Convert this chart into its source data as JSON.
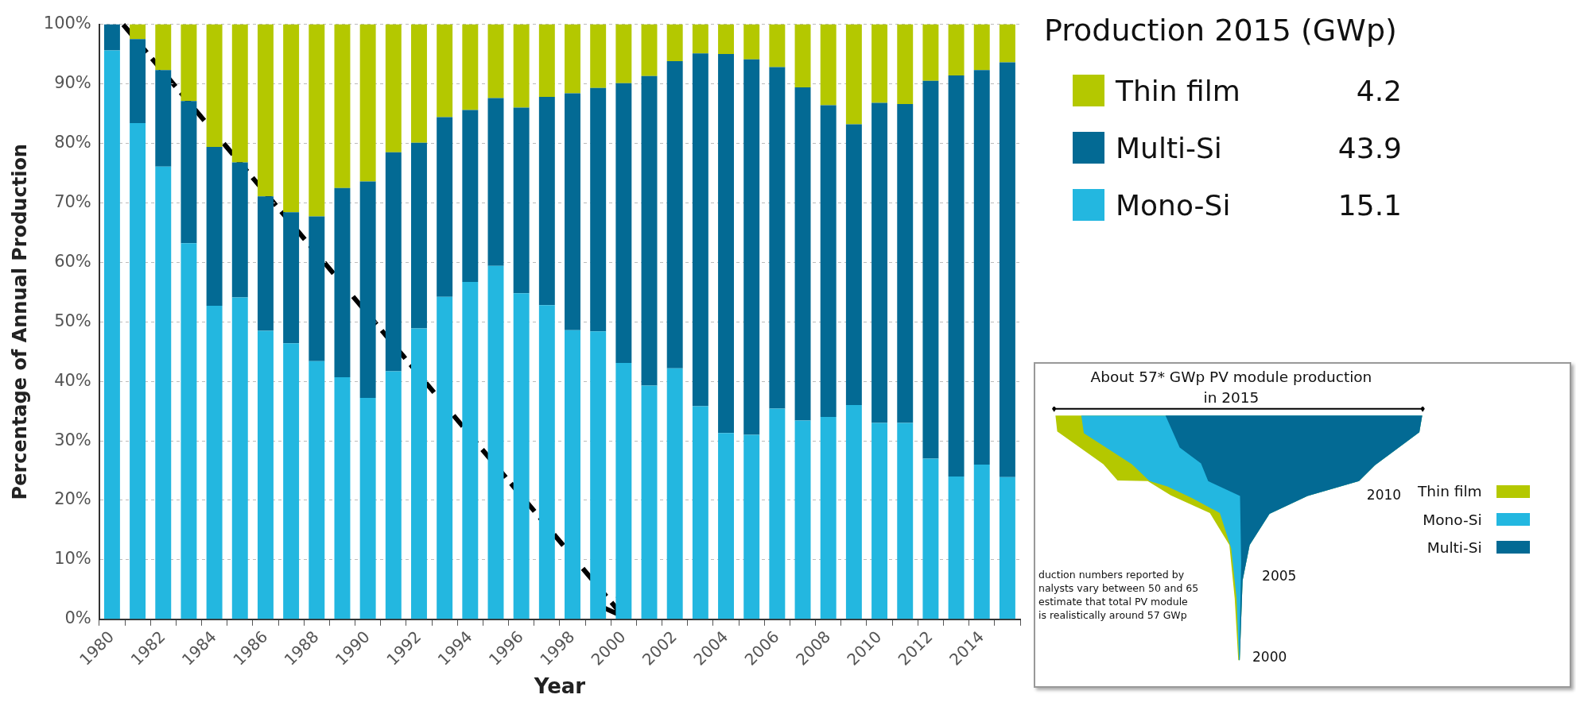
{
  "chart_data": [
    {
      "type": "bar",
      "stacked": true,
      "xlabel": "Year",
      "ylabel": "Percentage of Annual Production",
      "legend_title": "Production 2015 (GWp)",
      "legend": "top right",
      "grid": "y",
      "categories": [
        "1980",
        null,
        "1982",
        null,
        "1984",
        null,
        "1986",
        null,
        "1988",
        null,
        "1990",
        null,
        "1992",
        null,
        "1994",
        null,
        "1996",
        null,
        "1998",
        null,
        "2000",
        null,
        "2002",
        null,
        "2004",
        null,
        "2006",
        null,
        "2008",
        null,
        "2010",
        null,
        "2012",
        null,
        "2014",
        null
      ],
      "ylim": [
        0,
        100
      ],
      "yticks": [
        {
          "value": 0,
          "label": "0%"
        },
        {
          "value": 10,
          "label": "10%"
        },
        {
          "value": 20,
          "label": "20%"
        },
        {
          "value": 30,
          "label": "30%"
        },
        {
          "value": 40,
          "label": "40%"
        },
        {
          "value": 50,
          "label": "50%"
        },
        {
          "value": 60,
          "label": "60%"
        },
        {
          "value": 70,
          "label": "70%"
        },
        {
          "value": 80,
          "label": "80%"
        },
        {
          "value": 90,
          "label": "90%"
        },
        {
          "value": 100,
          "label": "100%"
        }
      ],
      "series": [
        {
          "name": "Mono-Si",
          "color": "#23b7e0",
          "values": [
            95.6,
            83.4,
            76.1,
            63.2,
            52.7,
            54.1,
            48.5,
            46.4,
            43.4,
            40.7,
            37.2,
            41.7,
            48.9,
            54.2,
            56.7,
            59.4,
            54.8,
            52.8,
            48.6,
            48.4,
            43.1,
            39.3,
            42.2,
            35.8,
            31.3,
            31.0,
            35.4,
            33.4,
            34,
            36,
            33,
            33,
            27,
            24,
            26,
            23.9
          ]
        },
        {
          "name": "Multi-Si",
          "color": "#036a94",
          "values": [
            4.4,
            14.1,
            16.2,
            23.9,
            26.7,
            22.7,
            22.6,
            22.0,
            24.3,
            31.8,
            36.4,
            36.8,
            31.2,
            30.2,
            28.9,
            28.2,
            31.2,
            35.0,
            39.8,
            40.9,
            47.0,
            52.0,
            51.6,
            59.3,
            63.7,
            63.1,
            57.4,
            56.0,
            52.4,
            47.2,
            53.8,
            53.6,
            63.5,
            67.4,
            66.3,
            69.7
          ]
        },
        {
          "name": "Thin film",
          "color": "#b4c800",
          "values": [
            0,
            2.5,
            7.7,
            12.9,
            20.6,
            23.2,
            28.9,
            31.6,
            32.3,
            27.5,
            26.4,
            21.5,
            19.9,
            15.6,
            14.4,
            12.4,
            14.0,
            12.2,
            11.6,
            10.7,
            9.9,
            8.7,
            6.2,
            4.9,
            5.0,
            5.9,
            7.2,
            10.6,
            13.6,
            16.8,
            13.2,
            13.4,
            9.5,
            8.6,
            7.7,
            6.4
          ]
        }
      ],
      "annotations": [
        "4.2",
        "43.9",
        "15.1"
      ]
    },
    {
      "type": "other",
      "title": "About 57* GWp PV module production in 2015",
      "categories": [
        "Thin film",
        "Mono-Si",
        "Multi-Si"
      ],
      "colors": [
        "#b4c800",
        "#23b7e0",
        "#036a94"
      ],
      "annotations": [
        "2010",
        "2005",
        "2000",
        "duction numbers reported by\nnalysts vary between 50 and 65\nestimate that total PV module\nis realistically around 57 GWp"
      ]
    }
  ]
}
